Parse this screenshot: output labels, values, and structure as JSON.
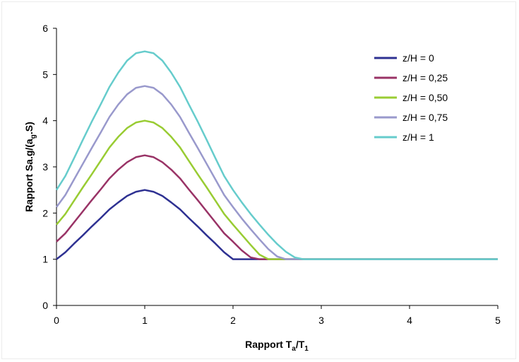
{
  "chart_data": {
    "type": "line",
    "xlabel": "Rapport Ta/T1",
    "xlabel_parts": {
      "main": "Rapport T",
      "sub1": "a",
      "mid": "/T",
      "sub2": "1"
    },
    "ylabel": "Rapport Sa.g/(a g.S)",
    "ylabel_parts": {
      "pre": "Rapport Sa.g/(a",
      "sub": "g",
      "post": ".S)"
    },
    "xlim": [
      0,
      5
    ],
    "ylim": [
      0,
      6
    ],
    "x_ticks": [
      "0",
      "1",
      "2",
      "3",
      "4",
      "5"
    ],
    "y_ticks": [
      "0",
      "1",
      "2",
      "3",
      "4",
      "5",
      "6"
    ],
    "grid": false,
    "legend_position": "top-right",
    "x": [
      0,
      0.1,
      0.2,
      0.3,
      0.4,
      0.5,
      0.6,
      0.7,
      0.8,
      0.9,
      1.0,
      1.1,
      1.2,
      1.3,
      1.4,
      1.5,
      1.6,
      1.7,
      1.8,
      1.9,
      2.0,
      2.1,
      2.2,
      2.3,
      2.4,
      2.5,
      2.6,
      2.7,
      2.8,
      2.9,
      3.0,
      3.5,
      4.0,
      4.5,
      5.0
    ],
    "series": [
      {
        "name": "z/H = 0",
        "color": "#2e3192",
        "values": [
          1.0,
          1.15,
          1.34,
          1.52,
          1.71,
          1.89,
          2.08,
          2.23,
          2.37,
          2.46,
          2.5,
          2.46,
          2.37,
          2.23,
          2.08,
          1.89,
          1.71,
          1.52,
          1.34,
          1.15,
          1.0,
          1.0,
          1.0,
          1.0,
          1.0,
          1.0,
          1.0,
          1.0,
          1.0,
          1.0,
          1.0,
          1.0,
          1.0,
          1.0,
          1.0
        ]
      },
      {
        "name": "z/H = 0,25",
        "color": "#993366",
        "values": [
          1.38,
          1.56,
          1.8,
          2.04,
          2.28,
          2.51,
          2.75,
          2.94,
          3.1,
          3.21,
          3.25,
          3.21,
          3.1,
          2.94,
          2.75,
          2.51,
          2.28,
          2.04,
          1.8,
          1.56,
          1.38,
          1.19,
          1.04,
          1.0,
          1.0,
          1.0,
          1.0,
          1.0,
          1.0,
          1.0,
          1.0,
          1.0,
          1.0,
          1.0,
          1.0
        ]
      },
      {
        "name": "z/H = 0,50",
        "color": "#99cc33",
        "values": [
          1.75,
          1.98,
          2.27,
          2.56,
          2.84,
          3.13,
          3.42,
          3.65,
          3.84,
          3.96,
          4.0,
          3.96,
          3.84,
          3.65,
          3.42,
          3.13,
          2.84,
          2.56,
          2.27,
          1.98,
          1.75,
          1.53,
          1.31,
          1.1,
          1.0,
          1.0,
          1.0,
          1.0,
          1.0,
          1.0,
          1.0,
          1.0,
          1.0,
          1.0,
          1.0
        ]
      },
      {
        "name": "z/H = 0,75",
        "color": "#9999cc",
        "values": [
          2.13,
          2.39,
          2.73,
          3.07,
          3.41,
          3.74,
          4.08,
          4.35,
          4.57,
          4.71,
          4.75,
          4.71,
          4.57,
          4.35,
          4.08,
          3.74,
          3.41,
          3.07,
          2.73,
          2.39,
          2.13,
          1.88,
          1.65,
          1.43,
          1.22,
          1.06,
          1.0,
          1.0,
          1.0,
          1.0,
          1.0,
          1.0,
          1.0,
          1.0,
          1.0
        ]
      },
      {
        "name": "z/H = 1",
        "color": "#66cccc",
        "values": [
          2.5,
          2.8,
          3.19,
          3.59,
          3.98,
          4.35,
          4.73,
          5.04,
          5.3,
          5.46,
          5.5,
          5.46,
          5.3,
          5.04,
          4.73,
          4.35,
          3.98,
          3.59,
          3.19,
          2.8,
          2.5,
          2.23,
          1.98,
          1.75,
          1.53,
          1.33,
          1.16,
          1.04,
          1.0,
          1.0,
          1.0,
          1.0,
          1.0,
          1.0,
          1.0
        ]
      }
    ]
  }
}
